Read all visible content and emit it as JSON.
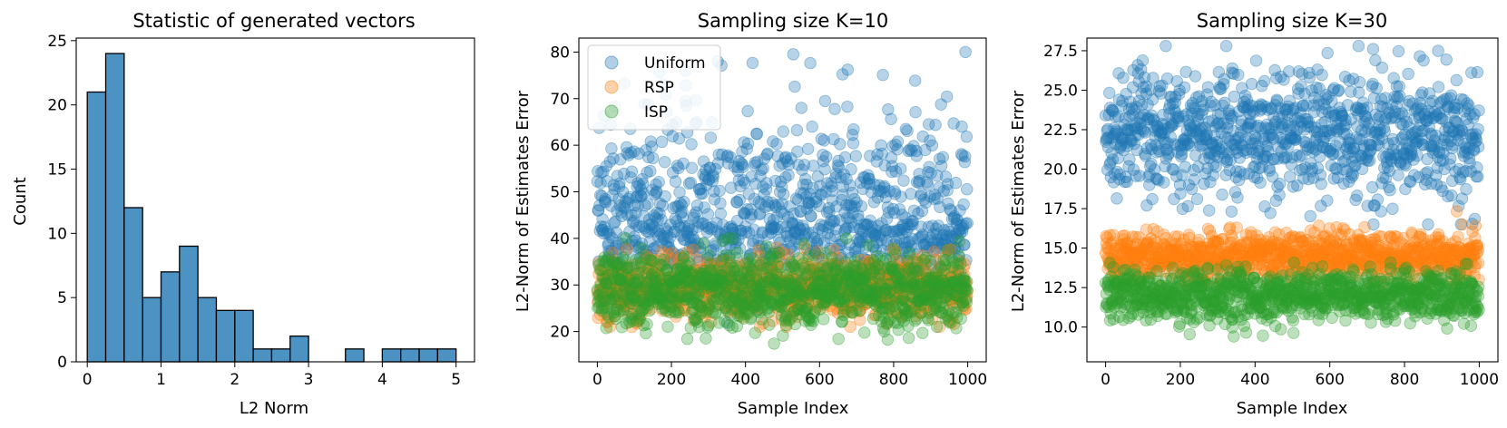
{
  "colors": {
    "uniform": "#1f77b4",
    "rsp": "#ff7f0e",
    "isp": "#2ca02c",
    "hist": "#4c92c3"
  },
  "chart_data": [
    {
      "type": "bar",
      "title": "Statistic of generated vectors",
      "xlabel": "L2 Norm",
      "ylabel": "Count",
      "xlim": [
        -0.15,
        5.25
      ],
      "ylim": [
        0,
        25.2
      ],
      "xticks": [
        0,
        1,
        2,
        3,
        4,
        5
      ],
      "yticks": [
        0,
        5,
        10,
        15,
        20,
        25
      ],
      "bin_edges": [
        0,
        0.25,
        0.5,
        0.75,
        1.0,
        1.25,
        1.5,
        1.75,
        2.0,
        2.25,
        2.5,
        2.75,
        3.0,
        3.25,
        3.5,
        3.75,
        4.0,
        4.25,
        4.5,
        4.75,
        5.0
      ],
      "values": [
        21,
        24,
        12,
        5,
        7,
        9,
        5,
        4,
        4,
        1,
        1,
        2,
        0,
        0,
        1,
        0,
        1,
        1,
        1,
        1
      ]
    },
    {
      "type": "scatter",
      "title": "Sampling size K=10",
      "xlabel": "Sample Index",
      "ylabel": "L2-Norm of Estimates Error",
      "xlim": [
        -50,
        1050
      ],
      "ylim": [
        13.5,
        83
      ],
      "xticks": [
        0,
        200,
        400,
        600,
        800,
        1000
      ],
      "yticks": [
        20,
        30,
        40,
        50,
        60,
        70,
        80
      ],
      "n_points": 1000,
      "legend_position": "upper-left",
      "series": [
        {
          "name": "Uniform",
          "color_key": "uniform",
          "mean": 43,
          "spread": 11,
          "min": 19,
          "max": 80
        },
        {
          "name": "RSP",
          "color_key": "rsp",
          "mean": 29.5,
          "spread": 3.2,
          "min": 21,
          "max": 38
        },
        {
          "name": "ISP",
          "color_key": "isp",
          "mean": 29,
          "spread": 4,
          "min": 17,
          "max": 40
        }
      ]
    },
    {
      "type": "scatter",
      "title": "Sampling size K=30",
      "xlabel": "Sample Index",
      "ylabel": "L2-Norm of Estimates Error",
      "xlim": [
        -50,
        1050
      ],
      "ylim": [
        7.8,
        28.3
      ],
      "xticks": [
        0,
        200,
        400,
        600,
        800,
        1000
      ],
      "yticks": [
        10.0,
        12.5,
        15.0,
        17.5,
        20.0,
        22.5,
        25.0,
        27.5
      ],
      "n_points": 1000,
      "series": [
        {
          "name": "Uniform",
          "color_key": "uniform",
          "mean": 22.2,
          "spread": 2.0,
          "min": 16.5,
          "max": 27.8
        },
        {
          "name": "RSP",
          "color_key": "rsp",
          "mean": 14.5,
          "spread": 0.75,
          "min": 12.5,
          "max": 17.4
        },
        {
          "name": "ISP",
          "color_key": "isp",
          "mean": 12.0,
          "spread": 0.8,
          "min": 8.7,
          "max": 14.5
        }
      ]
    }
  ]
}
